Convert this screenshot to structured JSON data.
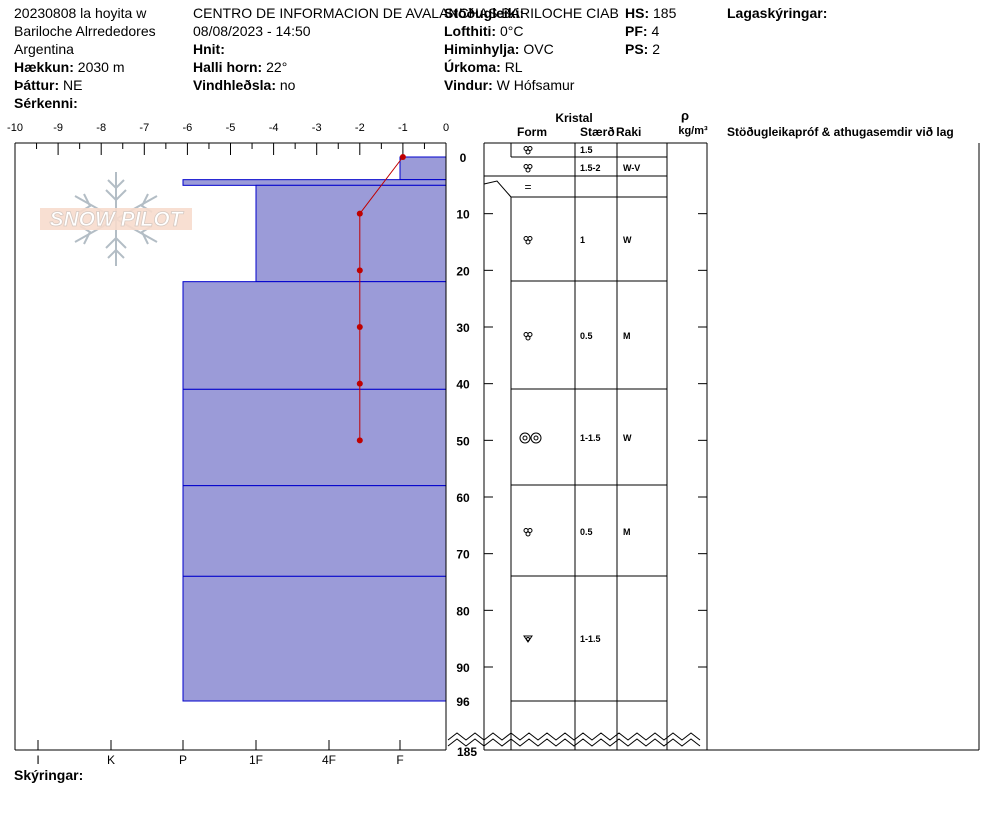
{
  "header": {
    "col1": [
      "20230808 la hoyita w",
      "Bariloche Alrrededores",
      "Argentina"
    ],
    "elevation_label": "Hækkun:",
    "elevation_value": "2030 m",
    "aspect_label": "Þáttur:",
    "aspect_value": "NE",
    "features_label": "Sérkenni:",
    "features_value": "",
    "org": "CENTRO DE INFORMACION DE AVALANCHAS BARILOCHE CIAB",
    "datetime": "08/08/2023 - 14:50",
    "coords_label": "Hnit:",
    "coords_value": "",
    "slope_label": "Halli horn:",
    "slope_value": "22°",
    "wind_loading_label": "Vindhleðsla:",
    "wind_loading_value": "no",
    "stability_label": "Stöðugleiki:",
    "stability_value": "",
    "air_temp_label": "Lofthiti:",
    "air_temp_value": "0°C",
    "sky_label": "Himinhylja:",
    "sky_value": "OVC",
    "precip_label": "Úrkoma:",
    "precip_value": "RL",
    "wind_label": "Vindur:",
    "wind_value": "W Hófsamur",
    "hs_label": "HS:",
    "hs_value": "185",
    "pf_label": "PF:",
    "pf_value": "4",
    "ps_label": "PS:",
    "ps_value": "2",
    "layer_notes_label": "Lagaskýringar:",
    "legend_label": "Skýringar:"
  },
  "logo": {
    "text": "SNOW PILOT"
  },
  "columns": {
    "kristal": "Kristal",
    "form": "Form",
    "size": "Stærð",
    "moisture": "Raki",
    "rho": "ρ",
    "density_unit": "kg/m³",
    "comments": "Stöðugleikapróf & athugasemdir við lag"
  },
  "chart_data": {
    "type": "snow-profile",
    "temp_axis": {
      "ticks": [
        -10,
        -9,
        -8,
        -7,
        -6,
        -5,
        -4,
        -3,
        -2,
        -1,
        0
      ],
      "range": [
        -10,
        0
      ]
    },
    "depth_axis": {
      "ticks": [
        0,
        10,
        20,
        30,
        40,
        50,
        60,
        70,
        80,
        90,
        96
      ],
      "bottom_label": "185",
      "range": [
        0,
        96
      ]
    },
    "hardness_axis": {
      "labels": [
        "I",
        "K",
        "P",
        "1F",
        "4F",
        "F"
      ]
    },
    "temperature_profile": [
      {
        "depth": 0,
        "temp": -1
      },
      {
        "depth": 10,
        "temp": -2
      },
      {
        "depth": 20,
        "temp": -2
      },
      {
        "depth": 30,
        "temp": -2
      },
      {
        "depth": 40,
        "temp": -2
      },
      {
        "depth": 50,
        "temp": -2
      }
    ],
    "layers": [
      {
        "top": 0,
        "bottom": 4,
        "hardness": "F",
        "form": "rounded",
        "size": "1.5",
        "moisture": ""
      },
      {
        "top": 4,
        "bottom": 5,
        "hardness": "P",
        "form": "rounded",
        "size": "1.5-2",
        "moisture": "W-V"
      },
      {
        "top": 5,
        "bottom": 22,
        "hardness": "1F",
        "form": "rounded",
        "size": "1",
        "moisture": "W"
      },
      {
        "top": 22,
        "bottom": 41,
        "hardness": "P",
        "form": "rounded",
        "size": "0.5",
        "moisture": "M"
      },
      {
        "top": 41,
        "bottom": 58,
        "hardness": "P",
        "form": "melt-forms",
        "size": "1-1.5",
        "moisture": "W"
      },
      {
        "top": 58,
        "bottom": 74,
        "hardness": "P",
        "form": "rounded",
        "size": "0.5",
        "moisture": "M"
      },
      {
        "top": 74,
        "bottom": 96,
        "hardness": "P",
        "form": "faceted-rounded",
        "size": "1-1.5",
        "moisture": ""
      }
    ],
    "thin_layer": {
      "depth": 5,
      "symbol": "="
    }
  }
}
